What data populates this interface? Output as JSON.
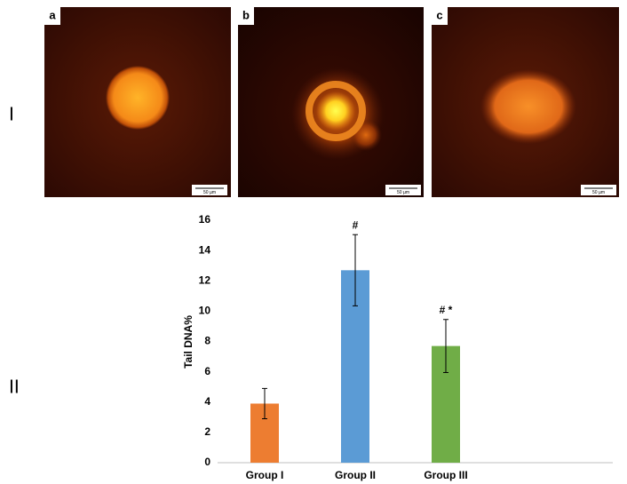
{
  "panel_labels": [
    "I",
    "II"
  ],
  "images": [
    {
      "label": "a",
      "scale_bar": "50 µm"
    },
    {
      "label": "b",
      "scale_bar": "50 µm"
    },
    {
      "label": "c",
      "scale_bar": "50 µm"
    }
  ],
  "chart_data": {
    "type": "bar",
    "ylabel": "Tail DNA%",
    "categories": [
      "Group I",
      "Group II",
      "Group III"
    ],
    "values": [
      3.9,
      12.7,
      7.7
    ],
    "errors": [
      1.0,
      2.35,
      1.75
    ],
    "colors": [
      "#ed7d31",
      "#5b9bd5",
      "#70ad47"
    ],
    "value_annotations": [
      null,
      "#",
      "# *"
    ],
    "ylim": [
      0,
      16
    ],
    "yticks": [
      0,
      2,
      4,
      6,
      8,
      10,
      12,
      14,
      16
    ],
    "grid": false
  }
}
